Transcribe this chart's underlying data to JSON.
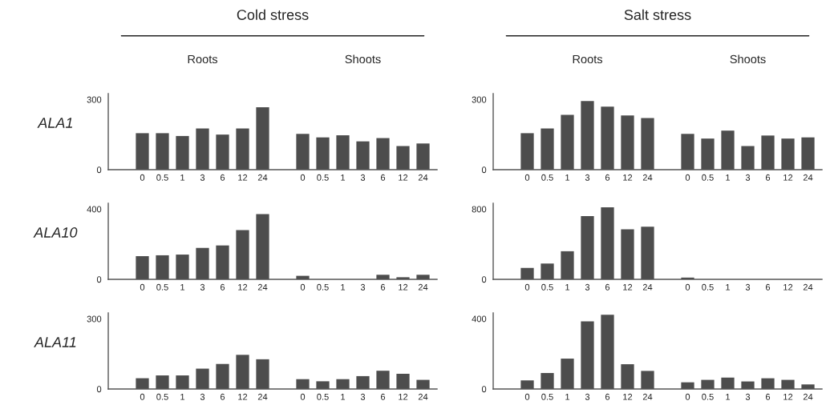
{
  "chart_data": [
    {
      "type": "bar",
      "title": "Cold stress",
      "annotations": [
        "Roots",
        "Shoots"
      ],
      "ylabel": "ALA1",
      "color": "#4d4d4d",
      "ylim": [
        0,
        325
      ],
      "yticks": [
        0,
        300
      ],
      "categories": [
        "0",
        "0.5",
        "1",
        "3",
        "6",
        "12",
        "24",
        null,
        "0",
        "0.5",
        "1",
        "3",
        "6",
        "12",
        "24"
      ],
      "values": [
        156,
        156,
        144,
        176,
        150,
        176,
        267,
        null,
        153,
        138,
        147,
        121,
        135,
        101,
        112
      ]
    },
    {
      "type": "bar",
      "title": "Salt stress",
      "annotations": [
        "Roots",
        "Shoots"
      ],
      "color": "#4d4d4d",
      "ylim": [
        0,
        325
      ],
      "yticks": [
        0,
        300
      ],
      "categories": [
        "0",
        "0.5",
        "1",
        "3",
        "6",
        "12",
        "24",
        null,
        "0",
        "0.5",
        "1",
        "3",
        "6",
        "12",
        "24"
      ],
      "values": [
        156,
        176,
        234,
        293,
        269,
        232,
        221,
        null,
        153,
        133,
        167,
        101,
        146,
        133,
        138
      ]
    },
    {
      "type": "bar",
      "ylabel": "ALA10",
      "color": "#4d4d4d",
      "ylim": [
        0,
        433
      ],
      "yticks": [
        0,
        400
      ],
      "categories": [
        "0",
        "0.5",
        "1",
        "3",
        "6",
        "12",
        "24",
        null,
        "0",
        "0.5",
        "1",
        "3",
        "6",
        "12",
        "24"
      ],
      "values": [
        132,
        137,
        141,
        179,
        193,
        280,
        371,
        null,
        20,
        0,
        0,
        0,
        26,
        12,
        26
      ]
    },
    {
      "type": "bar",
      "color": "#4d4d4d",
      "ylim": [
        0,
        866
      ],
      "yticks": [
        0,
        800
      ],
      "categories": [
        "0",
        "0.5",
        "1",
        "3",
        "6",
        "12",
        "24",
        null,
        "0",
        "0.5",
        "1",
        "3",
        "6",
        "12",
        "24"
      ],
      "values": [
        130,
        180,
        320,
        720,
        820,
        570,
        600,
        null,
        20,
        0,
        0,
        0,
        0,
        0,
        0
      ]
    },
    {
      "type": "bar",
      "ylabel": "ALA11",
      "color": "#4d4d4d",
      "ylim": [
        0,
        325
      ],
      "yticks": [
        0,
        300
      ],
      "categories": [
        "0",
        "0.5",
        "1",
        "3",
        "6",
        "12",
        "24",
        null,
        "0",
        "0.5",
        "1",
        "3",
        "6",
        "12",
        "24"
      ],
      "values": [
        46,
        58,
        58,
        87,
        107,
        146,
        127,
        null,
        42,
        33,
        42,
        55,
        78,
        65,
        39
      ]
    },
    {
      "type": "bar",
      "color": "#4d4d4d",
      "ylim": [
        0,
        433
      ],
      "yticks": [
        0,
        400
      ],
      "categories": [
        "0",
        "0.5",
        "1",
        "3",
        "6",
        "12",
        "24",
        null,
        "0",
        "0.5",
        "1",
        "3",
        "6",
        "12",
        "24"
      ],
      "values": [
        49,
        91,
        173,
        385,
        423,
        141,
        103,
        null,
        38,
        52,
        65,
        43,
        61,
        52,
        26
      ]
    }
  ]
}
